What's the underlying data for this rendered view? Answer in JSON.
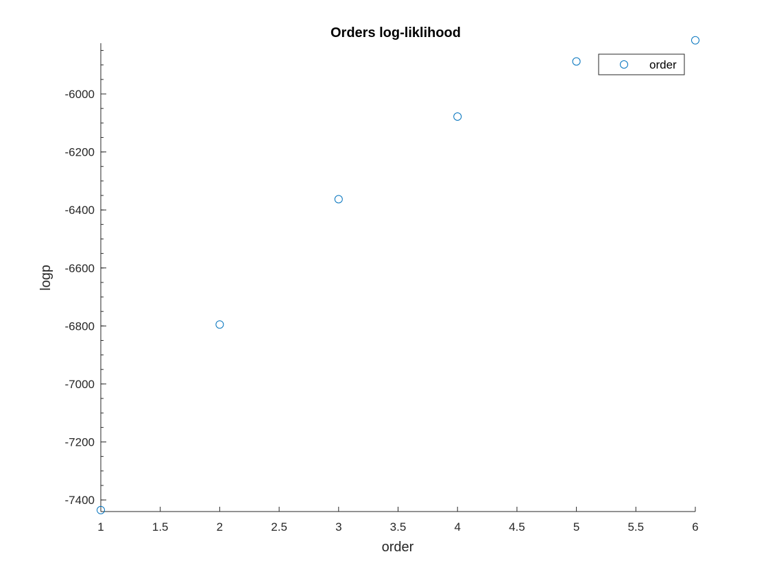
{
  "chart_data": {
    "type": "scatter",
    "title": "Orders log-liklihood",
    "xlabel": "order",
    "ylabel": "logp",
    "xlim": [
      1,
      6
    ],
    "ylim": [
      -7440,
      -5825
    ],
    "xticks": [
      1,
      1.5,
      2,
      2.5,
      3,
      3.5,
      4,
      4.5,
      5,
      5.5,
      6
    ],
    "xtick_labels": [
      "1",
      "1.5",
      "2",
      "2.5",
      "3",
      "3.5",
      "4",
      "4.5",
      "5",
      "5.5",
      "6"
    ],
    "yticks": [
      -7400,
      -7200,
      -7000,
      -6800,
      -6600,
      -6400,
      -6200,
      -6000
    ],
    "ytick_labels": [
      "-7400",
      "-7200",
      "-7000",
      "-6800",
      "-6600",
      "-6400",
      "-6200",
      "-6000"
    ],
    "y_minor_step": 50,
    "grid": false,
    "legend_position": "top-right",
    "marker": "open-circle",
    "series": [
      {
        "name": "order",
        "color": "#0072BD",
        "x": [
          1,
          2,
          3,
          4,
          5,
          6
        ],
        "y": [
          -7435,
          -6795,
          -6363,
          -6078,
          -5888,
          -5815
        ]
      }
    ]
  }
}
